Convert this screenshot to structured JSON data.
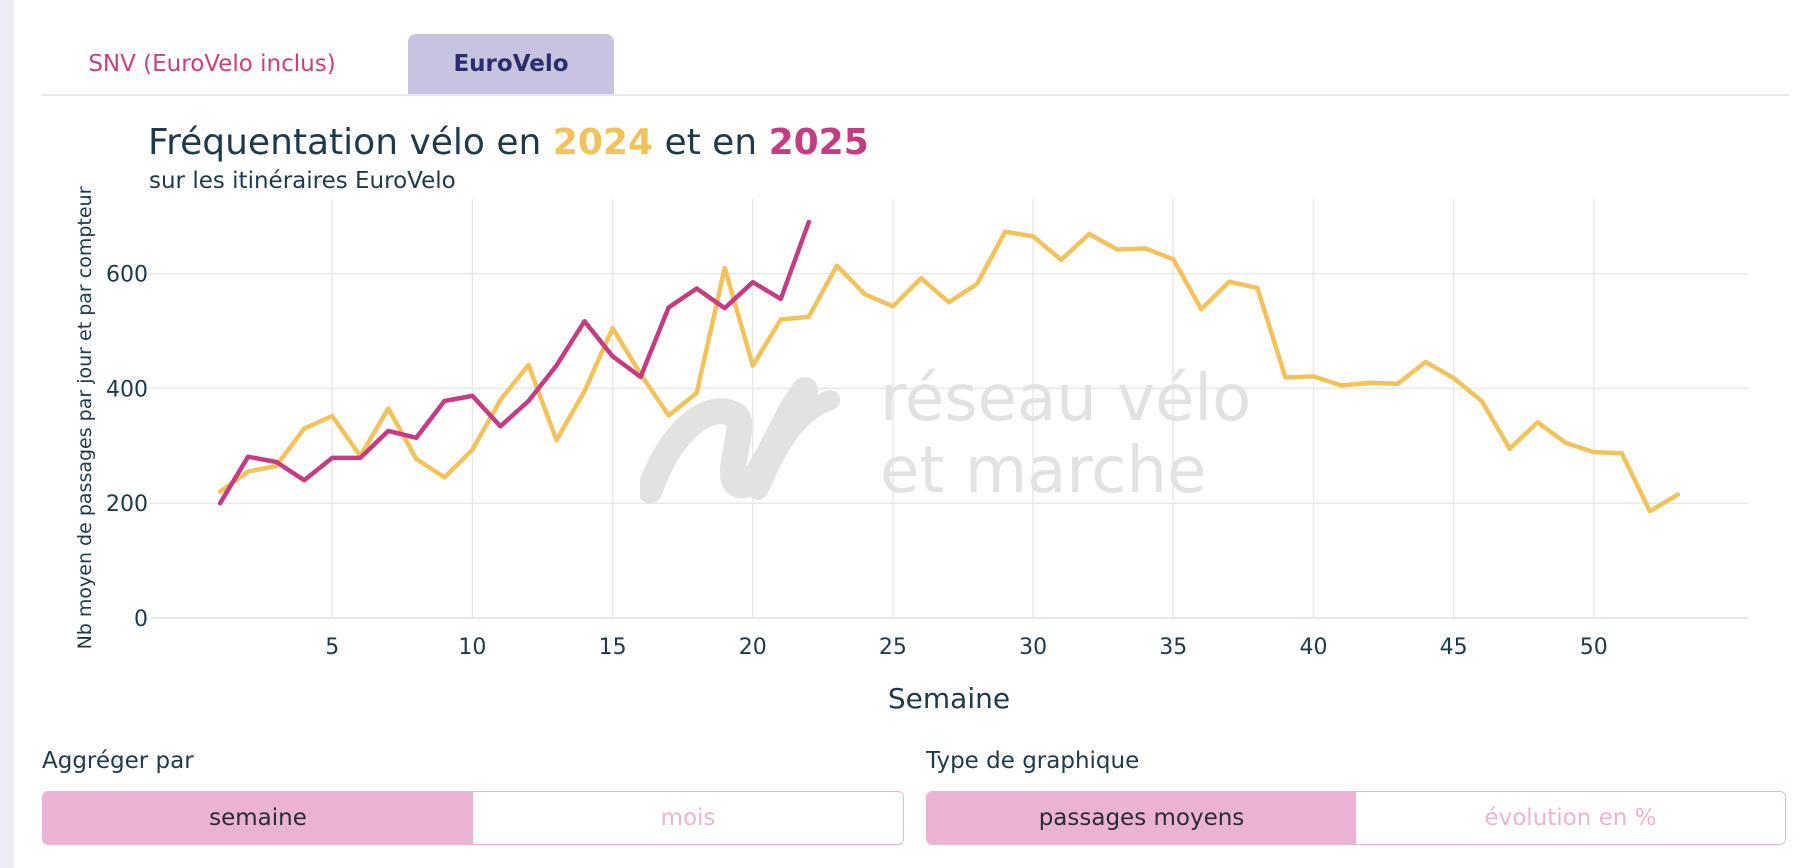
{
  "tabs": [
    {
      "label": "SNV (EuroVelo inclus)",
      "active": false
    },
    {
      "label": "EuroVelo",
      "active": true
    }
  ],
  "title": {
    "prefix": "Fréquentation vélo en ",
    "year1": "2024",
    "middle": " et en ",
    "year2": "2025"
  },
  "subtitle": "sur les itinéraires EuroVelo",
  "watermark": {
    "line1": "réseau vélo",
    "line2": "et marche"
  },
  "colors": {
    "y2024": "#f2c35c",
    "y2025": "#c43d82",
    "grid": "#e8e8e8",
    "text": "#1e3a4a"
  },
  "chart_data": {
    "type": "line",
    "xlabel": "Semaine",
    "ylabel": "Nb moyen de passages par jour et par compteur",
    "xlim": [
      -1.5,
      55.5
    ],
    "ylim": [
      0,
      730
    ],
    "xticks": [
      5,
      10,
      15,
      20,
      25,
      30,
      35,
      40,
      45,
      50
    ],
    "yticks": [
      0,
      200,
      400,
      600
    ],
    "series": [
      {
        "name": "2024",
        "color": "#f2c35c",
        "x": [
          1,
          2,
          3,
          4,
          5,
          6,
          7,
          8,
          9,
          10,
          11,
          12,
          13,
          14,
          15,
          16,
          17,
          18,
          19,
          20,
          21,
          22,
          23,
          24,
          25,
          26,
          27,
          28,
          29,
          30,
          31,
          32,
          33,
          34,
          35,
          36,
          37,
          38,
          39,
          40,
          41,
          42,
          43,
          44,
          45,
          46,
          47,
          48,
          49,
          50,
          51,
          52,
          53
        ],
        "values": [
          220,
          255,
          265,
          330,
          352,
          282,
          365,
          277,
          245,
          293,
          380,
          441,
          310,
          395,
          505,
          425,
          353,
          392,
          610,
          440,
          520,
          525,
          614,
          564,
          543,
          592,
          550,
          582,
          673,
          665,
          624,
          669,
          642,
          644,
          625,
          538,
          586,
          575,
          419,
          421,
          405,
          410,
          408,
          446,
          418,
          378,
          295,
          341,
          305,
          289,
          287,
          186,
          215
        ]
      },
      {
        "name": "2025",
        "color": "#c43d82",
        "x": [
          1,
          2,
          3,
          4,
          5,
          6,
          7,
          8,
          9,
          10,
          11,
          12,
          13,
          14,
          15,
          16,
          17,
          18,
          19,
          20,
          21,
          22
        ],
        "values": [
          200,
          281,
          272,
          240,
          279,
          279,
          326,
          314,
          378,
          387,
          334,
          378,
          440,
          517,
          456,
          420,
          541,
          574,
          540,
          585,
          556,
          690
        ]
      }
    ]
  },
  "controls": {
    "aggregate": {
      "label": "Aggréger par",
      "options": [
        "semaine",
        "mois"
      ],
      "selected": "semaine"
    },
    "chart_type": {
      "label": "Type de graphique",
      "options": [
        "passages moyens",
        "évolution en %"
      ],
      "selected": "passages moyens"
    }
  }
}
